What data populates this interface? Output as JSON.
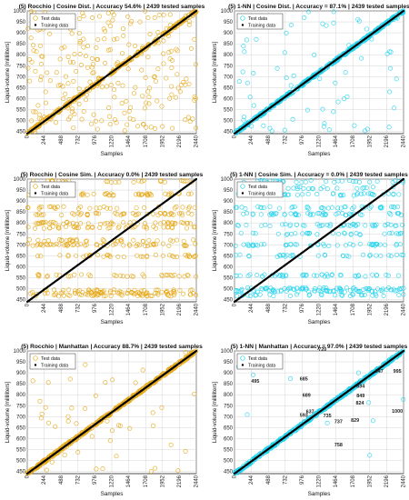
{
  "chart_data": [
    {
      "type": "scatter",
      "title": "(5) Rocchio | Cosine Dist. | Accuracy 54.6% | 2439 tested samples",
      "xlabel": "Samples",
      "ylabel": "Liquid-volume [milliliters]",
      "xlim": [
        0,
        2440
      ],
      "ylim": [
        440,
        1000
      ],
      "xticks": [
        "0",
        "244",
        "488",
        "732",
        "976",
        "1220",
        "1464",
        "1708",
        "1952",
        "2196",
        "2440"
      ],
      "yticks": [
        "450",
        "500",
        "550",
        "600",
        "650",
        "700",
        "750",
        "800",
        "850",
        "900",
        "950",
        "1000"
      ],
      "grid": true,
      "legend": "top-left",
      "series": [
        {
          "name": "Test data",
          "color": "#e6a817",
          "marker": "circle",
          "pattern": {
            "accuracy": 0.546,
            "mode": "noise",
            "seed": 11
          }
        },
        {
          "name": "Training data",
          "color": "#000000",
          "marker": "dot",
          "line": {
            "x": [
              0,
              2440
            ],
            "y": [
              440,
              1000
            ]
          }
        }
      ]
    },
    {
      "type": "scatter",
      "title": "(5) 1-NN | Cosine Dist. | Accuracy = 87.1% | 2439 tested samples",
      "xlabel": "Samples",
      "ylabel": "Liquid-volume [milliliters]",
      "xlim": [
        0,
        2440
      ],
      "ylim": [
        440,
        1000
      ],
      "xticks": [
        "0",
        "244",
        "488",
        "732",
        "976",
        "1220",
        "1464",
        "1708",
        "1952",
        "2196",
        "2440"
      ],
      "yticks": [
        "450",
        "500",
        "550",
        "600",
        "650",
        "700",
        "750",
        "800",
        "850",
        "900",
        "950",
        "1000"
      ],
      "grid": true,
      "legend": "top-left",
      "series": [
        {
          "name": "Test data",
          "color": "#22d3ee",
          "marker": "circle",
          "pattern": {
            "accuracy": 0.871,
            "mode": "noise",
            "seed": 23
          }
        },
        {
          "name": "Training data",
          "color": "#000000",
          "marker": "dot",
          "line": {
            "x": [
              0,
              2440
            ],
            "y": [
              440,
              1000
            ]
          }
        }
      ]
    },
    {
      "type": "scatter",
      "title": "(5) Rocchio | Cosine Sim. | Accuracy 0.0% | 2439 tested samples",
      "xlabel": "Samples",
      "ylabel": "Liquid-volume [milliliters]",
      "xlim": [
        0,
        2440
      ],
      "ylim": [
        440,
        1000
      ],
      "xticks": [
        "0",
        "244",
        "488",
        "732",
        "976",
        "1220",
        "1464",
        "1708",
        "1952",
        "2196",
        "2440"
      ],
      "yticks": [
        "450",
        "500",
        "550",
        "600",
        "650",
        "700",
        "750",
        "800",
        "850",
        "900",
        "950",
        "1000"
      ],
      "grid": true,
      "legend": "top-left",
      "series": [
        {
          "name": "Test data",
          "color": "#e6a817",
          "marker": "circle",
          "pattern": {
            "accuracy": 0.0,
            "mode": "levels",
            "seed": 37,
            "levels": [
              470,
              480,
              490,
              560,
              650,
              700,
              720,
              780,
              800,
              840,
              870,
              930,
              990
            ]
          }
        },
        {
          "name": "Training data",
          "color": "#000000",
          "marker": "dot",
          "line": {
            "x": [
              0,
              2440
            ],
            "y": [
              440,
              1000
            ]
          }
        }
      ]
    },
    {
      "type": "scatter",
      "title": "(5) 1-NN | Cosine Sim. | Accuracy = 0.0% | 2439 tested samples",
      "xlabel": "Samples",
      "ylabel": "Liquid-volume [milliliters]",
      "xlim": [
        0,
        2440
      ],
      "ylim": [
        440,
        1000
      ],
      "xticks": [
        "0",
        "244",
        "488",
        "732",
        "976",
        "1220",
        "1464",
        "1708",
        "1952",
        "2196",
        "2440"
      ],
      "yticks": [
        "450",
        "500",
        "550",
        "600",
        "650",
        "700",
        "750",
        "800",
        "850",
        "900",
        "950",
        "1000"
      ],
      "grid": true,
      "legend": "top-left",
      "series": [
        {
          "name": "Test data",
          "color": "#22d3ee",
          "marker": "circle",
          "pattern": {
            "accuracy": 0.0,
            "mode": "levels",
            "seed": 53,
            "levels": [
              470,
              490,
              500,
              560,
              650,
              700,
              750,
              790,
              840,
              870,
              930,
              960,
              990
            ]
          }
        },
        {
          "name": "Training data",
          "color": "#000000",
          "marker": "dot",
          "line": {
            "x": [
              0,
              2440
            ],
            "y": [
              440,
              1000
            ]
          }
        }
      ]
    },
    {
      "type": "scatter",
      "title": "(5) Rocchio | Manhattan | Accuracy 88.7% | 2439 tested samples",
      "xlabel": "Samples",
      "ylabel": "Liquid-volume [milliliters]",
      "xlim": [
        0,
        2440
      ],
      "ylim": [
        440,
        1000
      ],
      "xticks": [
        "0",
        "244",
        "488",
        "732",
        "976",
        "1220",
        "1464",
        "1708",
        "1952",
        "2196",
        "2440"
      ],
      "yticks": [
        "450",
        "500",
        "550",
        "600",
        "650",
        "700",
        "750",
        "800",
        "850",
        "900",
        "950",
        "1000"
      ],
      "grid": true,
      "legend": "top-left",
      "series": [
        {
          "name": "Test data",
          "color": "#e6a817",
          "marker": "circle",
          "pattern": {
            "accuracy": 0.887,
            "mode": "noise",
            "seed": 71
          }
        },
        {
          "name": "Training data",
          "color": "#000000",
          "marker": "dot",
          "line": {
            "x": [
              0,
              2440
            ],
            "y": [
              440,
              1000
            ]
          }
        }
      ]
    },
    {
      "type": "scatter",
      "title": "(5) 1-NN | Manhattan | Accuracy = 97.0% | 2439 tested samples",
      "xlabel": "Samples",
      "ylabel": "Liquid-volume [milliliters]",
      "xlim": [
        0,
        2440
      ],
      "ylim": [
        440,
        1000
      ],
      "xticks": [
        "0",
        "244",
        "488",
        "732",
        "976",
        "1220",
        "1464",
        "1708",
        "1952",
        "2196",
        "2440"
      ],
      "yticks": [
        "450",
        "500",
        "550",
        "600",
        "650",
        "700",
        "750",
        "800",
        "850",
        "900",
        "950",
        "1000"
      ],
      "grid": true,
      "legend": "top-left",
      "series": [
        {
          "name": "Test data",
          "color": "#22d3ee",
          "marker": "circle",
          "pattern": {
            "accuracy": 0.97,
            "mode": "noise",
            "seed": 89
          }
        },
        {
          "name": "Training data",
          "color": "#000000",
          "marker": "dot",
          "line": {
            "x": [
              0,
              2440
            ],
            "y": [
              440,
              1000
            ]
          }
        }
      ],
      "annotations": [
        {
          "text": "495",
          "x": 300,
          "y": 855
        },
        {
          "text": "685",
          "x": 1000,
          "y": 865
        },
        {
          "text": "720",
          "x": 1270,
          "y": 1000
        },
        {
          "text": "689",
          "x": 1040,
          "y": 790
        },
        {
          "text": "637",
          "x": 1090,
          "y": 715
        },
        {
          "text": "593",
          "x": 1000,
          "y": 700
        },
        {
          "text": "735",
          "x": 1340,
          "y": 698
        },
        {
          "text": "737",
          "x": 1500,
          "y": 670
        },
        {
          "text": "829",
          "x": 1740,
          "y": 676
        },
        {
          "text": "824",
          "x": 1810,
          "y": 755
        },
        {
          "text": "834",
          "x": 1820,
          "y": 833
        },
        {
          "text": "849",
          "x": 1820,
          "y": 788
        },
        {
          "text": "947",
          "x": 2090,
          "y": 900
        },
        {
          "text": "995",
          "x": 2350,
          "y": 900
        },
        {
          "text": "1000",
          "x": 2350,
          "y": 718
        },
        {
          "text": "758",
          "x": 1500,
          "y": 565
        }
      ]
    }
  ]
}
